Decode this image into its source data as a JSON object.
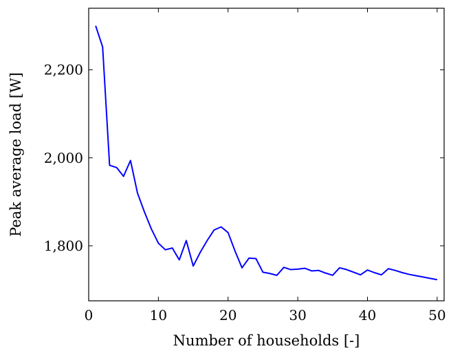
{
  "chart_data": {
    "type": "line",
    "title": "",
    "xlabel": "Number of households [-]",
    "ylabel": "Peak average load [W]",
    "xlim": [
      0,
      51
    ],
    "ylim": [
      1675,
      2340
    ],
    "x_ticks": [
      0,
      10,
      20,
      30,
      40,
      50
    ],
    "x_tick_labels": [
      "0",
      "10",
      "20",
      "30",
      "40",
      "50"
    ],
    "y_ticks": [
      1800,
      2000,
      2200
    ],
    "y_tick_labels": [
      "1,800",
      "2,000",
      "2,200"
    ],
    "grid": false,
    "legend": "none",
    "series": [
      {
        "color": "#0000ff",
        "x": [
          1,
          2,
          3,
          4,
          5,
          6,
          7,
          8,
          9,
          10,
          11,
          12,
          13,
          14,
          15,
          16,
          17,
          18,
          19,
          20,
          21,
          22,
          23,
          24,
          25,
          26,
          27,
          28,
          29,
          30,
          31,
          32,
          33,
          34,
          35,
          36,
          37,
          38,
          39,
          40,
          41,
          42,
          43,
          44,
          45,
          46,
          47,
          48,
          49,
          50
        ],
        "y": [
          2300,
          2252,
          1983,
          1978,
          1958,
          1994,
          1920,
          1877,
          1838,
          1806,
          1791,
          1795,
          1768,
          1812,
          1754,
          1785,
          1812,
          1836,
          1843,
          1830,
          1788,
          1750,
          1772,
          1771,
          1740,
          1737,
          1733,
          1751,
          1746,
          1747,
          1749,
          1743,
          1744,
          1738,
          1733,
          1750,
          1746,
          1740,
          1734,
          1745,
          1739,
          1734,
          1748,
          1744,
          1739,
          1735,
          1732,
          1729,
          1726,
          1723
        ]
      }
    ]
  }
}
